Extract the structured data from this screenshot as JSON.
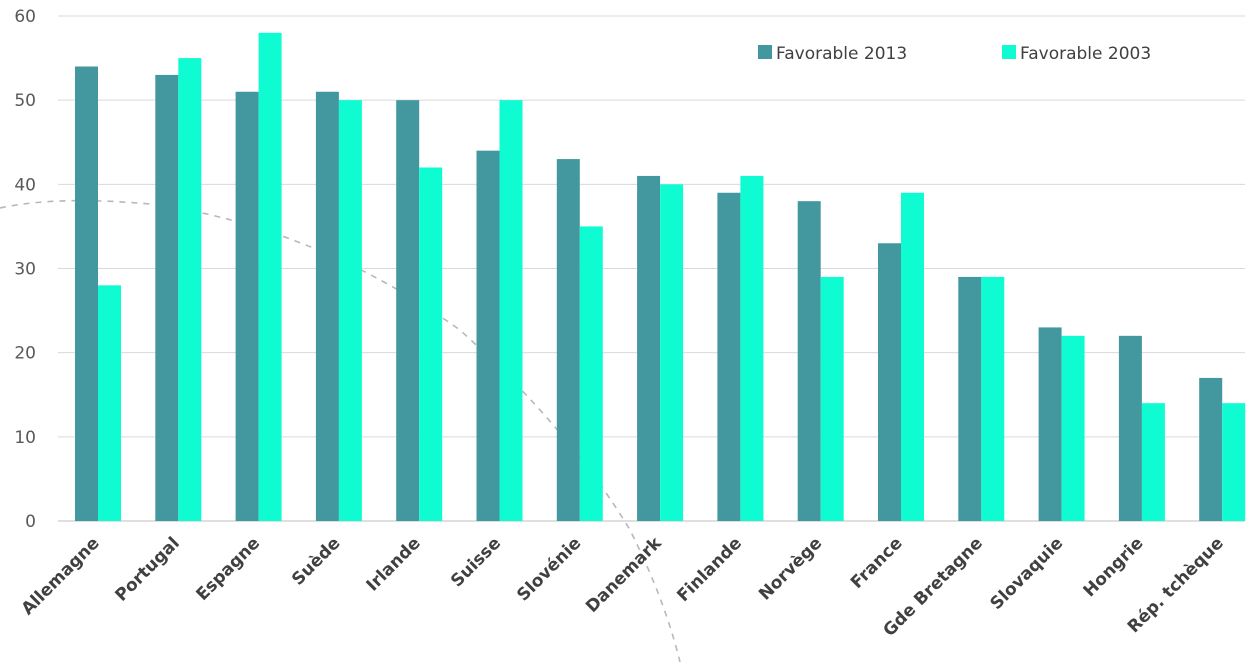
{
  "chart_data": {
    "type": "bar",
    "title": "",
    "xlabel": "",
    "ylabel": "",
    "ylim": [
      0,
      60
    ],
    "yticks": [
      0,
      10,
      20,
      30,
      40,
      50,
      60
    ],
    "grid": true,
    "legend_position": "top-right",
    "categories": [
      "Allemagne",
      "Portugal",
      "Espagne",
      "Suède",
      "Irlande",
      "Suisse",
      "Slovénie",
      "Danemark",
      "Finlande",
      "Norvège",
      "France",
      "Gde Bretagne",
      "Slovaquie",
      "Hongrie",
      "Rép. tchèque"
    ],
    "series": [
      {
        "name": "Favorable 2013",
        "color": "#43979f",
        "values": [
          54,
          53,
          51,
          51,
          50,
          44,
          43,
          41,
          39,
          38,
          33,
          29,
          23,
          22,
          17
        ]
      },
      {
        "name": "Favorable 2003",
        "color": "#0ffcd3",
        "values": [
          28,
          55,
          58,
          50,
          42,
          50,
          35,
          40,
          41,
          29,
          39,
          29,
          22,
          14,
          14
        ]
      }
    ]
  },
  "colors": {
    "gridline": "#d9d9d9",
    "axis": "#bfbfbf",
    "decorative_arc": "#b8b8b8"
  }
}
